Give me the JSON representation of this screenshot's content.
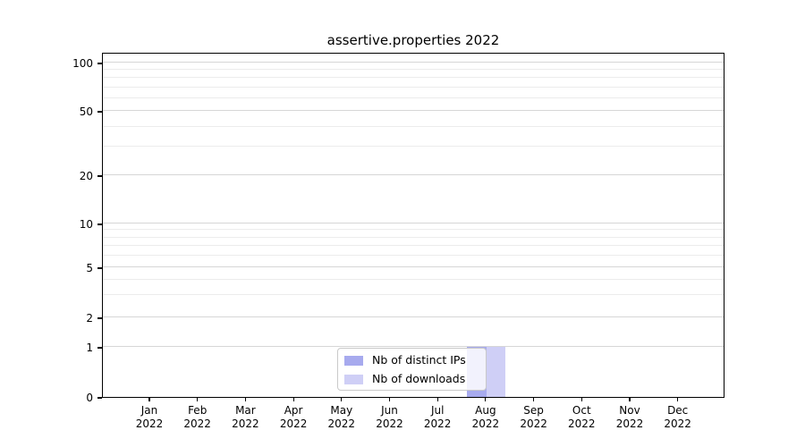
{
  "figure": {
    "title": "assertive.properties 2022"
  },
  "legend": {
    "items": [
      {
        "label": "Nb of distinct IPs",
        "color": "#a7aaee"
      },
      {
        "label": "Nb of downloads",
        "color": "#cfcff6"
      }
    ]
  },
  "axes": {
    "y_tick_labels": [
      "0",
      "1",
      "2",
      "5",
      "10",
      "20",
      "50",
      "100"
    ],
    "x_tick_labels": [
      "Jan 2022",
      "Feb 2022",
      "Mar 2022",
      "Apr 2022",
      "May 2022",
      "Jun 2022",
      "Jul 2022",
      "Aug 2022",
      "Sep 2022",
      "Oct 2022",
      "Nov 2022",
      "Dec 2022"
    ]
  },
  "chart_data": {
    "type": "bar",
    "title": "assertive.properties 2022",
    "categories": [
      "Jan 2022",
      "Feb 2022",
      "Mar 2022",
      "Apr 2022",
      "May 2022",
      "Jun 2022",
      "Jul 2022",
      "Aug 2022",
      "Sep 2022",
      "Oct 2022",
      "Nov 2022",
      "Dec 2022"
    ],
    "series": [
      {
        "name": "Nb of distinct IPs",
        "color": "#a7aaee",
        "values": [
          0,
          0,
          0,
          0,
          0,
          0,
          0,
          1,
          0,
          0,
          0,
          0
        ]
      },
      {
        "name": "Nb of downloads",
        "color": "#cfcff6",
        "values": [
          0,
          0,
          0,
          0,
          0,
          0,
          0,
          1,
          0,
          0,
          0,
          0
        ]
      }
    ],
    "xlabel": "",
    "ylabel": "",
    "y_ticks": [
      0,
      1,
      2,
      5,
      10,
      20,
      50,
      100
    ],
    "y_minor_ticks": [
      3,
      4,
      6,
      7,
      8,
      9,
      30,
      40,
      60,
      70,
      80,
      90
    ],
    "y_scale": "symlog",
    "ylim": [
      0,
      120
    ],
    "grid": "horizontal major and minor gridlines",
    "legend_position": "lower center inside plot",
    "bar_layout": "grouped pair per month"
  }
}
